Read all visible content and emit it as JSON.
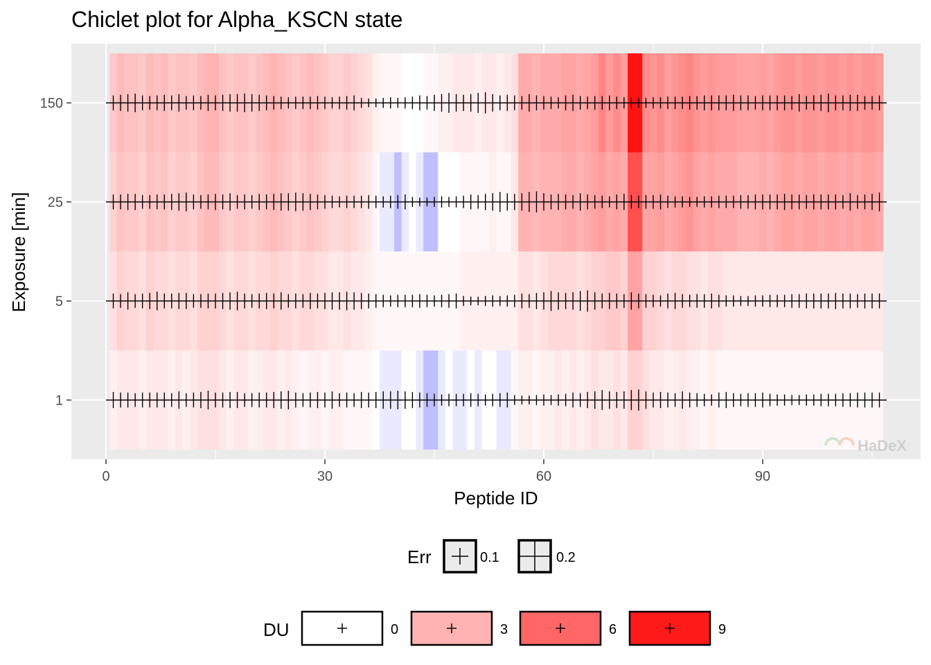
{
  "chart_data": {
    "type": "heatmap",
    "title": "Chiclet plot for Alpha_KSCN state",
    "xlabel": "Peptide ID",
    "ylabel": "Exposure [min]",
    "xlim": [
      -5,
      112
    ],
    "x_ticks": [
      0,
      30,
      60,
      90
    ],
    "exposures": [
      "1",
      "5",
      "25",
      "150"
    ],
    "n_peptides": 106,
    "du_range": [
      -1,
      10
    ],
    "du_rows": {
      "1": [
        0.6,
        0.9,
        0.9,
        0.9,
        0.6,
        0.9,
        0.9,
        0.9,
        0.6,
        0.9,
        0.6,
        0.9,
        1.2,
        1.2,
        1.2,
        0.9,
        0.6,
        0.9,
        0.9,
        0.6,
        0.6,
        0.9,
        0.9,
        0.6,
        0.9,
        0.6,
        0.3,
        0.6,
        0.6,
        0.3,
        0.6,
        0.6,
        0.3,
        0.3,
        0.3,
        0.3,
        0,
        -0.1,
        -0.1,
        -0.1,
        0,
        0,
        -0.1,
        -0.3,
        -0.3,
        -0.1,
        0,
        -0.1,
        -0.1,
        0,
        -0.1,
        0,
        0,
        -0.1,
        -0.1,
        0.3,
        0.6,
        0.6,
        0.3,
        0.6,
        0.6,
        0.9,
        0.6,
        0.9,
        0.6,
        0.9,
        1.2,
        0.9,
        0.9,
        1.2,
        0.9,
        1.8,
        1.8,
        1.2,
        0.9,
        0.9,
        0.6,
        0.6,
        0.9,
        0.6,
        0.6,
        0.3,
        0.6,
        0.3,
        0.3,
        0.3,
        0.3,
        0.3,
        0.3,
        0.3,
        0.3,
        0.3,
        0.3,
        0.3,
        0.3,
        0.3,
        0.3,
        0.3,
        0.3,
        0.3,
        0.3,
        0.3,
        0.3,
        0.3,
        0.3,
        0.3
      ],
      "5": [
        1.2,
        1.8,
        1.5,
        1.5,
        1.2,
        1.8,
        1.5,
        1.5,
        1.2,
        1.5,
        1.5,
        1.2,
        1.8,
        1.8,
        1.8,
        1.5,
        1.2,
        1.5,
        1.5,
        1.2,
        1.5,
        1.5,
        1.8,
        1.5,
        1.5,
        1.2,
        1.5,
        1.5,
        1.2,
        1.2,
        0.9,
        0.9,
        1.2,
        0.9,
        0.9,
        0.6,
        0.3,
        0.3,
        0.3,
        0.3,
        0.3,
        0.3,
        0.3,
        0.3,
        0.3,
        0.3,
        0.3,
        0.3,
        0.6,
        0.6,
        0.6,
        0.6,
        0.6,
        0.6,
        0.6,
        0.6,
        1.2,
        1.2,
        0.9,
        1.2,
        1.5,
        1.5,
        1.5,
        1.5,
        1.2,
        1.5,
        1.8,
        1.8,
        2.1,
        2.1,
        1.8,
        3.6,
        3.6,
        1.8,
        1.8,
        1.5,
        1.2,
        1.5,
        1.5,
        1.2,
        1.2,
        0.9,
        1.2,
        1.2,
        0.9,
        0.9,
        0.9,
        0.9,
        0.9,
        0.9,
        0.9,
        0.9,
        0.9,
        0.9,
        0.9,
        0.9,
        0.9,
        0.9,
        0.9,
        0.9,
        0.9,
        0.9,
        0.9,
        0.9,
        0.9,
        0.9
      ],
      "25": [
        1.8,
        2.4,
        2.1,
        2.1,
        1.8,
        2.4,
        2.1,
        2.4,
        1.8,
        2.1,
        2.1,
        1.8,
        2.4,
        2.7,
        2.7,
        2.1,
        1.8,
        2.1,
        2.1,
        1.8,
        2.1,
        2.4,
        2.7,
        2.4,
        2.1,
        1.8,
        2.1,
        2.4,
        2.1,
        1.8,
        1.5,
        1.5,
        1.8,
        1.5,
        1.2,
        0.9,
        0.3,
        -0.1,
        -0.1,
        -0.3,
        -0.1,
        0,
        -0.1,
        -0.3,
        -0.3,
        0,
        0,
        0,
        0.3,
        0.3,
        0.3,
        0.3,
        0.6,
        0.3,
        0.3,
        0.9,
        3.0,
        3.0,
        2.7,
        3.0,
        3.0,
        3.0,
        3.3,
        3.3,
        3.0,
        3.3,
        3.6,
        3.9,
        3.3,
        3.6,
        3.3,
        6.9,
        6.9,
        3.6,
        3.6,
        3.9,
        3.3,
        3.6,
        3.9,
        4.2,
        3.6,
        3.3,
        3.6,
        3.3,
        3.3,
        3.3,
        3.0,
        3.0,
        3.0,
        3.3,
        3.0,
        3.3,
        3.6,
        3.6,
        3.3,
        3.6,
        3.6,
        3.3,
        3.6,
        3.6,
        3.3,
        3.6,
        3.3,
        3.6,
        3.6,
        3.3
      ],
      "150": [
        2.1,
        2.7,
        2.4,
        2.4,
        2.1,
        2.7,
        2.4,
        2.7,
        2.1,
        2.4,
        2.4,
        2.1,
        2.7,
        3.0,
        3.0,
        2.4,
        2.1,
        2.4,
        2.4,
        2.1,
        2.4,
        2.7,
        3.0,
        2.7,
        2.4,
        2.1,
        2.4,
        2.7,
        2.4,
        2.1,
        1.8,
        1.8,
        2.1,
        1.8,
        1.5,
        1.2,
        0.6,
        0.3,
        0.3,
        0.3,
        0,
        0,
        0,
        0.3,
        0.3,
        0.6,
        0.6,
        0.9,
        0.9,
        0.9,
        0.6,
        0.9,
        0.9,
        0.6,
        0.9,
        1.2,
        3.3,
        3.3,
        3.0,
        3.3,
        3.3,
        3.3,
        3.6,
        3.6,
        3.3,
        3.6,
        3.9,
        4.8,
        3.9,
        4.5,
        3.9,
        9.3,
        9.3,
        4.5,
        4.2,
        4.5,
        3.9,
        4.2,
        4.5,
        4.8,
        4.2,
        3.9,
        4.2,
        3.9,
        3.9,
        3.9,
        3.6,
        3.6,
        3.6,
        3.9,
        3.6,
        3.9,
        4.2,
        4.2,
        3.9,
        4.2,
        4.2,
        3.9,
        4.2,
        4.2,
        3.9,
        4.2,
        3.9,
        4.2,
        4.2,
        3.9
      ]
    },
    "err_pattern": [
      0.13,
      0.12,
      0.12,
      0.11,
      0.12,
      0.12,
      0.12,
      0.12,
      0.11,
      0.14,
      0.11,
      0.12,
      0.13,
      0.15,
      0.12,
      0.12,
      0.13,
      0.13,
      0.11,
      0.11,
      0.12,
      0.12,
      0.13,
      0.14,
      0.15,
      0.12,
      0.11,
      0.12,
      0.13,
      0.12,
      0.14,
      0.11,
      0.12,
      0.11,
      0.13,
      0.12,
      0.13,
      0.14,
      0.14,
      0.15,
      0.14,
      0.13,
      0.12,
      0.11,
      0.1,
      0.09,
      0.1,
      0.1,
      0.1,
      0.11,
      0.1,
      0.09,
      0.1,
      0.11,
      0.12,
      0.08,
      0.07,
      0.07,
      0.08,
      0.09,
      0.08,
      0.09,
      0.1,
      0.12,
      0.11,
      0.13,
      0.14,
      0.16,
      0.14,
      0.13,
      0.14,
      0.16,
      0.17,
      0.14,
      0.12,
      0.13,
      0.12,
      0.11,
      0.14,
      0.12,
      0.11,
      0.1,
      0.09,
      0.12,
      0.13,
      0.11,
      0.1,
      0.11,
      0.11,
      0.12,
      0.1,
      0.09,
      0.09,
      0.08,
      0.08,
      0.09,
      0.09,
      0.1,
      0.1,
      0.1,
      0.11,
      0.11,
      0.12,
      0.12,
      0.12,
      0.12
    ],
    "legend": {
      "err": {
        "title": "Err",
        "entries": [
          {
            "label": "0.1",
            "value": 0.1
          },
          {
            "label": "0.2",
            "value": 0.2
          }
        ]
      },
      "du": {
        "title": "DU",
        "entries": [
          {
            "label": "0",
            "value": 0
          },
          {
            "label": "3",
            "value": 3
          },
          {
            "label": "6",
            "value": 6
          },
          {
            "label": "9",
            "value": 9
          }
        ]
      }
    },
    "colors": {
      "panel": "#ebebeb",
      "gridline": "#ffffff",
      "low": "#2b2bff",
      "mid": "#ffffff",
      "high": "#ff0000"
    },
    "watermark": "HaDeX"
  }
}
